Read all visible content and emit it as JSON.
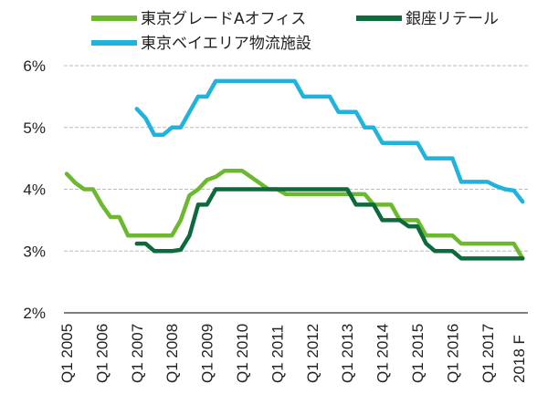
{
  "chart_data": {
    "type": "line",
    "title": "",
    "xlabel": "",
    "ylabel": "",
    "ylim": [
      2,
      6
    ],
    "yticks": [
      "2%",
      "3%",
      "4%",
      "5%",
      "6%"
    ],
    "xticks": [
      "Q1 2005",
      "Q1 2006",
      "Q1 2007",
      "Q1 2008",
      "Q1 2009",
      "Q1 2010",
      "Q1 2011",
      "Q1 2012",
      "Q1 2013",
      "Q1 2014",
      "Q1 2015",
      "Q1 2016",
      "Q1 2017",
      "2018 F"
    ],
    "grid": "horizontal dashed",
    "legend": "top",
    "x": [
      "Q1 2005",
      "Q2 2005",
      "Q3 2005",
      "Q4 2005",
      "Q1 2006",
      "Q2 2006",
      "Q3 2006",
      "Q4 2006",
      "Q1 2007",
      "Q2 2007",
      "Q3 2007",
      "Q4 2007",
      "Q1 2008",
      "Q2 2008",
      "Q3 2008",
      "Q4 2008",
      "Q1 2009",
      "Q2 2009",
      "Q3 2009",
      "Q4 2009",
      "Q1 2010",
      "Q2 2010",
      "Q3 2010",
      "Q4 2010",
      "Q1 2011",
      "Q2 2011",
      "Q3 2011",
      "Q4 2011",
      "Q1 2012",
      "Q2 2012",
      "Q3 2012",
      "Q4 2012",
      "Q1 2013",
      "Q2 2013",
      "Q3 2013",
      "Q4 2013",
      "Q1 2014",
      "Q2 2014",
      "Q3 2014",
      "Q4 2014",
      "Q1 2015",
      "Q2 2015",
      "Q3 2015",
      "Q4 2015",
      "Q1 2016",
      "Q2 2016",
      "Q3 2016",
      "Q4 2016",
      "Q1 2017",
      "Q2 2017",
      "Q3 2017",
      "Q4 2017",
      "2018 F"
    ],
    "series": [
      {
        "name": "東京グレードAオフィス",
        "color": "#6cb92f",
        "values": [
          4.25,
          4.1,
          4.0,
          4.0,
          3.75,
          3.55,
          3.55,
          3.25,
          3.25,
          3.25,
          3.25,
          3.25,
          3.25,
          3.5,
          3.9,
          4.0,
          4.15,
          4.2,
          4.3,
          4.3,
          4.3,
          4.2,
          4.1,
          4.0,
          4.0,
          3.92,
          3.92,
          3.92,
          3.92,
          3.92,
          3.92,
          3.92,
          3.92,
          3.92,
          3.92,
          3.75,
          3.75,
          3.75,
          3.5,
          3.5,
          3.5,
          3.25,
          3.25,
          3.25,
          3.25,
          3.12,
          3.12,
          3.12,
          3.12,
          3.12,
          3.12,
          3.12,
          2.88
        ]
      },
      {
        "name": "銀座リテール",
        "color": "#0d6a3c",
        "values": [
          null,
          null,
          null,
          null,
          null,
          null,
          null,
          null,
          3.12,
          3.12,
          3.0,
          3.0,
          3.0,
          3.02,
          3.25,
          3.75,
          3.75,
          4.0,
          4.0,
          4.0,
          4.0,
          4.0,
          4.0,
          4.0,
          4.0,
          4.0,
          4.0,
          4.0,
          4.0,
          4.0,
          4.0,
          4.0,
          4.0,
          3.75,
          3.75,
          3.75,
          3.5,
          3.5,
          3.5,
          3.4,
          3.4,
          3.12,
          3.0,
          3.0,
          3.0,
          2.88,
          2.88,
          2.88,
          2.88,
          2.88,
          2.88,
          2.88,
          2.88
        ]
      },
      {
        "name": "東京ベイエリア物流施設",
        "color": "#1fb3de",
        "values": [
          null,
          null,
          null,
          null,
          null,
          null,
          null,
          null,
          5.3,
          5.15,
          4.88,
          4.88,
          5.0,
          5.0,
          5.25,
          5.5,
          5.5,
          5.75,
          5.75,
          5.75,
          5.75,
          5.75,
          5.75,
          5.75,
          5.75,
          5.75,
          5.75,
          5.5,
          5.5,
          5.5,
          5.5,
          5.25,
          5.25,
          5.25,
          5.0,
          5.0,
          4.75,
          4.75,
          4.75,
          4.75,
          4.75,
          4.5,
          4.5,
          4.5,
          4.5,
          4.12,
          4.12,
          4.12,
          4.12,
          4.05,
          4.0,
          3.98,
          3.8
        ]
      }
    ]
  }
}
